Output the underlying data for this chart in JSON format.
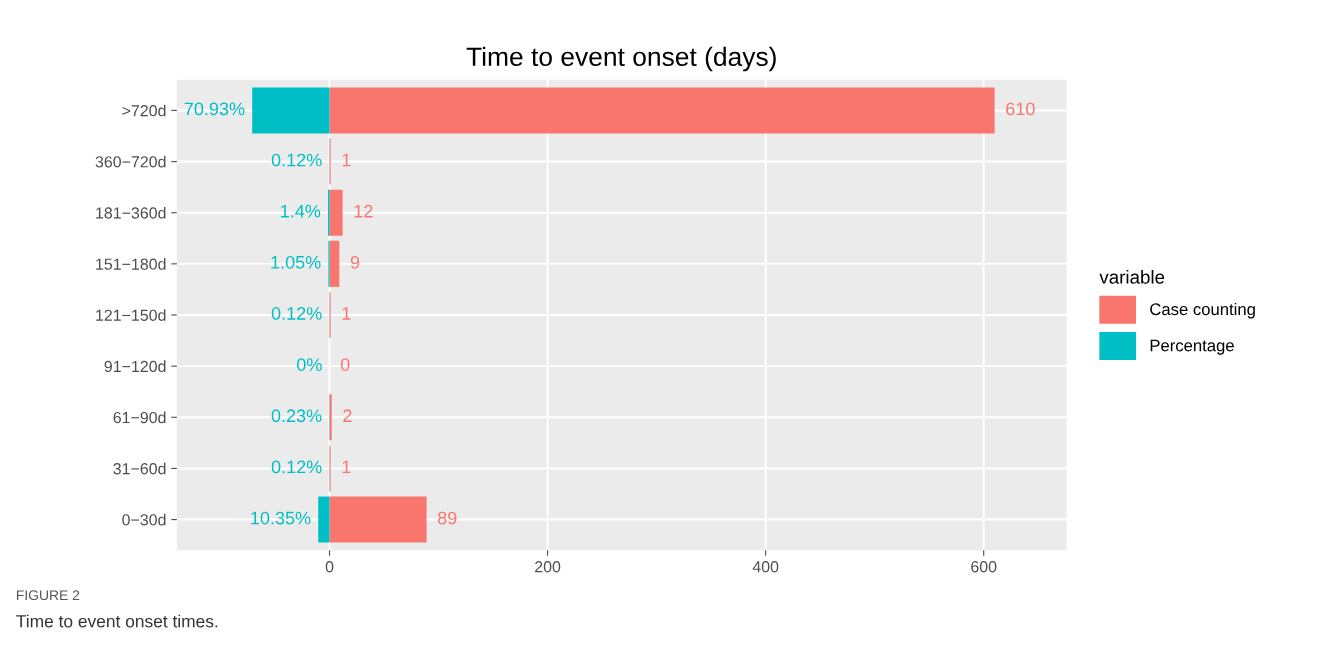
{
  "chart_data": {
    "type": "bar",
    "orientation": "horizontal",
    "title": "Time to event onset (days)",
    "categories": [
      ">720d",
      "360−720d",
      "181−360d",
      "151−180d",
      "121−150d",
      "91−120d",
      "61−90d",
      "31−60d",
      "0−30d"
    ],
    "series": [
      {
        "name": "Case counting",
        "color": "#f8766d",
        "values": [
          610,
          1,
          12,
          9,
          1,
          0,
          2,
          1,
          89
        ],
        "value_labels": [
          "610",
          "1",
          "12",
          "9",
          "1",
          "0",
          "2",
          "1",
          "89"
        ]
      },
      {
        "name": "Percentage",
        "color": "#00bfc4",
        "values": [
          70.93,
          0.12,
          1.4,
          1.05,
          0.12,
          0,
          0.23,
          0.12,
          10.35
        ],
        "base": [
          -70.93,
          -0.12,
          -1.4,
          -1.05,
          -0.12,
          null,
          -0.23,
          -0.12,
          -10.35
        ],
        "value_labels": [
          "70.93%",
          "0.12%",
          "1.4%",
          "1.05%",
          "0.12%",
          "0%",
          "0.23%",
          "0.12%",
          "10.35%"
        ]
      }
    ],
    "xlim": [
      -140,
      676
    ],
    "xticks": [
      0,
      200,
      400,
      600
    ],
    "grid": true,
    "legend": "right",
    "legend_title": "variable",
    "annotations": [
      "FIGURE 2",
      "Time to event onset times."
    ]
  }
}
